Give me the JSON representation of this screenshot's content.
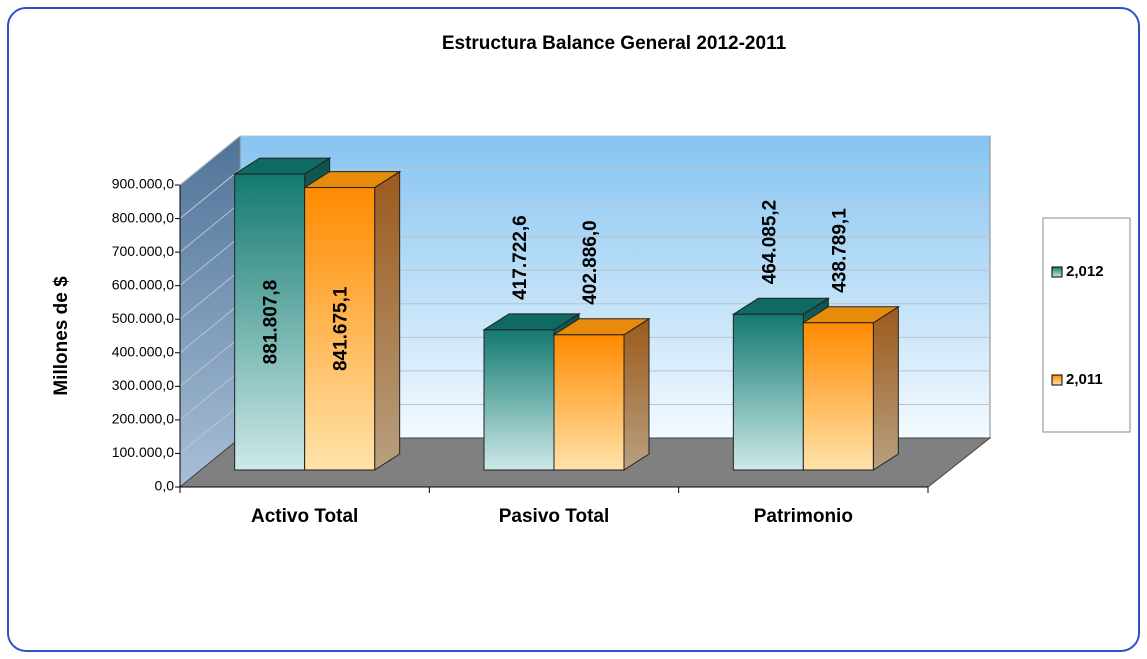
{
  "chart_data": {
    "type": "bar3d",
    "title": "Estructura Balance General 2012-2011",
    "ylabel": "Millones de $",
    "categories": [
      "Activo Total",
      "Pasivo Total",
      "Patrimonio"
    ],
    "series": [
      {
        "name": "2,012",
        "color": "#1a7a72",
        "values": [
          881807.8,
          417722.6,
          464085.2
        ],
        "value_labels": [
          "881.807,8",
          "417.722,6",
          "464.085,2"
        ]
      },
      {
        "name": "2,011",
        "color": "#ff8c00",
        "values": [
          841675.1,
          402886.0,
          438789.1
        ],
        "value_labels": [
          "841.675,1",
          "402.886,0",
          "438.789,1"
        ]
      }
    ],
    "ylim": [
      0,
      900000
    ],
    "yticks": [
      {
        "value": 0,
        "label": "0,0"
      },
      {
        "value": 100000,
        "label": "100.000,0"
      },
      {
        "value": 200000,
        "label": "200.000,0"
      },
      {
        "value": 300000,
        "label": "300.000,0"
      },
      {
        "value": 400000,
        "label": "400.000,0"
      },
      {
        "value": 500000,
        "label": "500.000,0"
      },
      {
        "value": 600000,
        "label": "600.000,0"
      },
      {
        "value": 700000,
        "label": "700.000,0"
      },
      {
        "value": 800000,
        "label": "800.000,0"
      },
      {
        "value": 900000,
        "label": "900.000,0"
      }
    ],
    "grid": true,
    "legend": "right"
  }
}
